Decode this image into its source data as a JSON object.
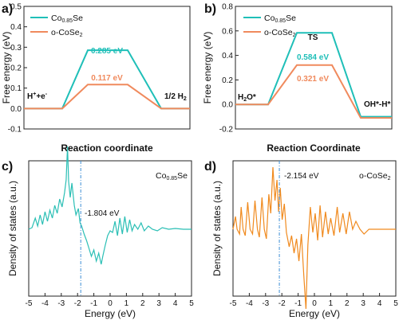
{
  "colors": {
    "teal": "#1fbfb8",
    "orange": "#f08a5d",
    "dos_teal": "#2bbfb5",
    "dos_orange": "#f08a1e",
    "marker": "#3d8fd6"
  },
  "chart_data": [
    {
      "panel": "a)",
      "type": "line",
      "ylabel": "Free energy (eV)",
      "xlabel": "Reaction coordinate",
      "ylim": [
        -0.1,
        0.5
      ],
      "yticks": [
        "-0.1",
        "0.0",
        "0.1",
        "0.2",
        "0.3",
        "0.4",
        "0.5"
      ],
      "legend": [
        "Co0.85Se",
        "o-CoSe2"
      ],
      "states": [
        "H⁺+e⁻",
        "",
        "1/2 H₂"
      ],
      "series": [
        {
          "name": "Co0.85Se",
          "color": "teal",
          "values": [
            0,
            0.285,
            0
          ]
        },
        {
          "name": "o-CoSe2",
          "color": "orange",
          "values": [
            0,
            0.117,
            0
          ]
        }
      ],
      "annotations": [
        "0.285 eV",
        "0.117 eV"
      ]
    },
    {
      "panel": "b)",
      "type": "line",
      "ylabel": "Free energy (eV)",
      "xlabel": "Reaction Coordinate",
      "ylim": [
        -0.2,
        0.8
      ],
      "yticks": [
        "-0.2",
        "0.0",
        "0.2",
        "0.4",
        "0.6",
        "0.8"
      ],
      "legend": [
        "Co0.85Se",
        "o-CoSe2"
      ],
      "states": [
        "H₂O*",
        "TS",
        "OH*-H*"
      ],
      "series": [
        {
          "name": "Co0.85Se",
          "color": "teal",
          "values": [
            0,
            0.584,
            -0.1
          ]
        },
        {
          "name": "o-CoSe2",
          "color": "orange",
          "values": [
            0,
            0.321,
            -0.11
          ]
        }
      ],
      "annotations": [
        "0.584 eV",
        "0.321 eV"
      ]
    },
    {
      "panel": "c)",
      "type": "line",
      "ylabel": "Density of states (a.u.)",
      "xlabel": "Energy (eV)",
      "xlim": [
        -5,
        5
      ],
      "xticks": [
        "-5",
        "-4",
        "-3",
        "-2",
        "-1",
        "0",
        "1",
        "2",
        "3",
        "4",
        "5"
      ],
      "legend": [
        "Co0.85Se"
      ],
      "dband_center": -1.804,
      "annotations": [
        "-1.804 eV"
      ]
    },
    {
      "panel": "d)",
      "type": "line",
      "ylabel": "Density of states (a.u.)",
      "xlabel": "Energy (eV)",
      "xlim": [
        -5,
        5
      ],
      "xticks": [
        "-5",
        "-4",
        "-3",
        "-2",
        "-1",
        "0",
        "1",
        "2",
        "3",
        "4",
        "5"
      ],
      "legend": [
        "o-CoSe2"
      ],
      "dband_center": -2.154,
      "annotations": [
        "-2.154 eV"
      ]
    }
  ]
}
